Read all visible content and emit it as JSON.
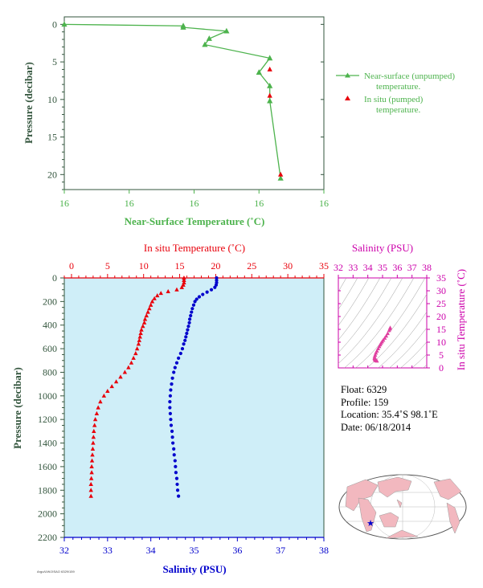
{
  "colors": {
    "green": "#4db34d",
    "red": "#e8000b",
    "blue": "#0000cc",
    "magenta": "#cc00aa",
    "pink": "#e040a0",
    "axis_dark": "#33553d",
    "plot_bg": "#cfeef8",
    "land": "#f2b8bf"
  },
  "chart_data": [
    {
      "type": "line",
      "xlabel": "Near-Surface Temperature (˚C)",
      "ylabel": "Pressure (decibar)",
      "xticklabels": [
        "16",
        "16",
        "16",
        "16",
        "16"
      ],
      "xlim": [
        15.6,
        16.8
      ],
      "ylim": [
        22,
        -1
      ],
      "yticks": [
        0,
        5,
        10,
        15,
        20
      ],
      "legend_position": "right",
      "series": [
        {
          "name": "Near-surface (unpumped) temperature.",
          "marker": "triangle",
          "points": [
            [
              15.6,
              0
            ],
            [
              16.15,
              0.2
            ],
            [
              16.15,
              0.4
            ],
            [
              16.35,
              0.9
            ],
            [
              16.27,
              1.9
            ],
            [
              16.25,
              2.7
            ],
            [
              16.55,
              4.5
            ],
            [
              16.5,
              6.4
            ],
            [
              16.55,
              8.2
            ],
            [
              16.55,
              10.2
            ],
            [
              16.6,
              20.5
            ]
          ]
        },
        {
          "name": "In situ (pumped) temperature.",
          "marker": "triangle",
          "points": [
            [
              16.55,
              6
            ],
            [
              16.55,
              9.5
            ],
            [
              16.6,
              20
            ]
          ]
        }
      ]
    },
    {
      "type": "scatter",
      "xlabel_top": "In situ Temperature (˚C)",
      "xlabel_bottom": "Salinity (PSU)",
      "ylabel": "Pressure (decibar)",
      "temp_lim": [
        -1,
        35
      ],
      "sal_lim": [
        32,
        38
      ],
      "ylim": [
        2200,
        0
      ],
      "yticks": [
        0,
        200,
        400,
        600,
        800,
        1000,
        1200,
        1400,
        1600,
        1800,
        2000,
        2200
      ],
      "temp_ticks": [
        0,
        5,
        10,
        15,
        20,
        25,
        30,
        35
      ],
      "sal_ticks": [
        32,
        33,
        34,
        35,
        36,
        37,
        38
      ],
      "series": [
        {
          "name": "In situ Temperature (˚C)",
          "marker": "triangle",
          "points": [
            [
              15.6,
              0
            ],
            [
              15.6,
              20
            ],
            [
              15.6,
              40
            ],
            [
              15.5,
              60
            ],
            [
              15.3,
              80
            ],
            [
              14.6,
              100
            ],
            [
              13.4,
              115
            ],
            [
              12.4,
              130
            ],
            [
              11.9,
              150
            ],
            [
              11.5,
              175
            ],
            [
              11.2,
              200
            ],
            [
              11.0,
              230
            ],
            [
              10.8,
              260
            ],
            [
              10.6,
              290
            ],
            [
              10.4,
              320
            ],
            [
              10.2,
              350
            ],
            [
              10.1,
              380
            ],
            [
              9.9,
              410
            ],
            [
              9.7,
              440
            ],
            [
              9.6,
              470
            ],
            [
              9.5,
              500
            ],
            [
              9.4,
              530
            ],
            [
              9.3,
              560
            ],
            [
              9.1,
              600
            ],
            [
              8.9,
              640
            ],
            [
              8.6,
              680
            ],
            [
              8.3,
              720
            ],
            [
              7.9,
              760
            ],
            [
              7.4,
              800
            ],
            [
              6.8,
              840
            ],
            [
              6.2,
              880
            ],
            [
              5.6,
              920
            ],
            [
              5.0,
              960
            ],
            [
              4.5,
              1000
            ],
            [
              4.0,
              1050
            ],
            [
              3.7,
              1100
            ],
            [
              3.5,
              1150
            ],
            [
              3.3,
              1200
            ],
            [
              3.2,
              1250
            ],
            [
              3.1,
              1300
            ],
            [
              3.05,
              1350
            ],
            [
              3.0,
              1400
            ],
            [
              2.95,
              1450
            ],
            [
              2.9,
              1500
            ],
            [
              2.85,
              1550
            ],
            [
              2.8,
              1600
            ],
            [
              2.8,
              1650
            ],
            [
              2.75,
              1700
            ],
            [
              2.7,
              1750
            ],
            [
              2.7,
              1800
            ],
            [
              2.7,
              1850
            ]
          ]
        },
        {
          "name": "Salinity (PSU)",
          "marker": "circle",
          "points": [
            [
              35.52,
              0
            ],
            [
              35.52,
              20
            ],
            [
              35.52,
              40
            ],
            [
              35.51,
              60
            ],
            [
              35.48,
              80
            ],
            [
              35.4,
              100
            ],
            [
              35.3,
              120
            ],
            [
              35.2,
              140
            ],
            [
              35.12,
              160
            ],
            [
              35.06,
              180
            ],
            [
              35.02,
              200
            ],
            [
              34.99,
              230
            ],
            [
              34.96,
              260
            ],
            [
              34.94,
              290
            ],
            [
              34.92,
              320
            ],
            [
              34.9,
              350
            ],
            [
              34.89,
              380
            ],
            [
              34.87,
              410
            ],
            [
              34.85,
              440
            ],
            [
              34.83,
              470
            ],
            [
              34.81,
              500
            ],
            [
              34.79,
              530
            ],
            [
              34.76,
              560
            ],
            [
              34.73,
              600
            ],
            [
              34.69,
              640
            ],
            [
              34.64,
              680
            ],
            [
              34.6,
              720
            ],
            [
              34.56,
              760
            ],
            [
              34.53,
              800
            ],
            [
              34.5,
              850
            ],
            [
              34.48,
              900
            ],
            [
              34.46,
              950
            ],
            [
              34.45,
              1000
            ],
            [
              34.44,
              1050
            ],
            [
              34.44,
              1100
            ],
            [
              34.45,
              1150
            ],
            [
              34.46,
              1200
            ],
            [
              34.47,
              1250
            ],
            [
              34.49,
              1300
            ],
            [
              34.5,
              1350
            ],
            [
              34.51,
              1400
            ],
            [
              34.53,
              1450
            ],
            [
              34.54,
              1500
            ],
            [
              34.56,
              1550
            ],
            [
              34.57,
              1600
            ],
            [
              34.58,
              1650
            ],
            [
              34.6,
              1700
            ],
            [
              34.61,
              1750
            ],
            [
              34.62,
              1800
            ],
            [
              34.64,
              1850
            ]
          ]
        }
      ]
    },
    {
      "type": "scatter",
      "xlabel": "Salinity (PSU)",
      "ylabel": "In situ Temperature (˚C)",
      "xlim": [
        32,
        38
      ],
      "ylim": [
        0,
        35
      ],
      "xticks": [
        32,
        33,
        34,
        35,
        36,
        37,
        38
      ],
      "yticks": [
        0,
        5,
        10,
        15,
        20,
        25,
        30,
        35
      ],
      "points": [
        [
          35.52,
          15.6
        ],
        [
          35.5,
          15.2
        ],
        [
          35.45,
          14.6
        ],
        [
          35.35,
          13.4
        ],
        [
          35.25,
          12.4
        ],
        [
          35.15,
          11.6
        ],
        [
          35.05,
          10.8
        ],
        [
          34.97,
          10.2
        ],
        [
          34.9,
          9.6
        ],
        [
          34.84,
          9.0
        ],
        [
          34.78,
          8.3
        ],
        [
          34.7,
          7.5
        ],
        [
          34.62,
          6.6
        ],
        [
          34.55,
          5.8
        ],
        [
          34.5,
          5.0
        ],
        [
          34.46,
          4.3
        ],
        [
          34.45,
          3.7
        ],
        [
          34.47,
          3.3
        ],
        [
          34.5,
          3.0
        ],
        [
          34.54,
          2.9
        ],
        [
          34.58,
          2.8
        ],
        [
          34.62,
          2.7
        ]
      ]
    }
  ],
  "float_info": {
    "float": "Float:  6329",
    "profile": "Profile:  159",
    "location": "Location:  35.4˚S  98.1˚E",
    "date": "Date:  06/18/2014"
  },
  "footnote": "Argo/UW/JISAO 6329/159",
  "map": {
    "marker_position_label": "float location star"
  }
}
